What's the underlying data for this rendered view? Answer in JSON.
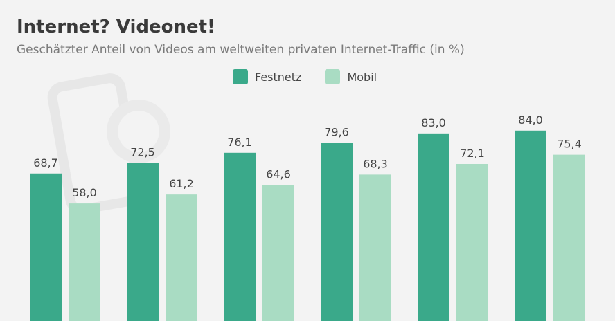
{
  "chart_data": {
    "type": "bar",
    "title": "Internet? Videonet!",
    "subtitle": "Geschätzter Anteil von Videos am weltweiten privaten Internet-Traffic (in %)",
    "xlabel": "",
    "ylabel": "",
    "legend_position": "top-center",
    "grid": false,
    "series": [
      {
        "name": "Festnetz",
        "color": "#3aa98a",
        "values": [
          68.7,
          72.5,
          76.1,
          79.6,
          83.0,
          84.0
        ],
        "labels": [
          "68,7",
          "72,5",
          "76,1",
          "79,6",
          "83,0",
          "84,0"
        ]
      },
      {
        "name": "Mobil",
        "color": "#a9dcc3",
        "values": [
          58.0,
          61.2,
          64.6,
          68.3,
          72.1,
          75.4
        ],
        "labels": [
          "58,0",
          "61,2",
          "64,6",
          "68,3",
          "72,1",
          "75,4"
        ]
      }
    ]
  }
}
